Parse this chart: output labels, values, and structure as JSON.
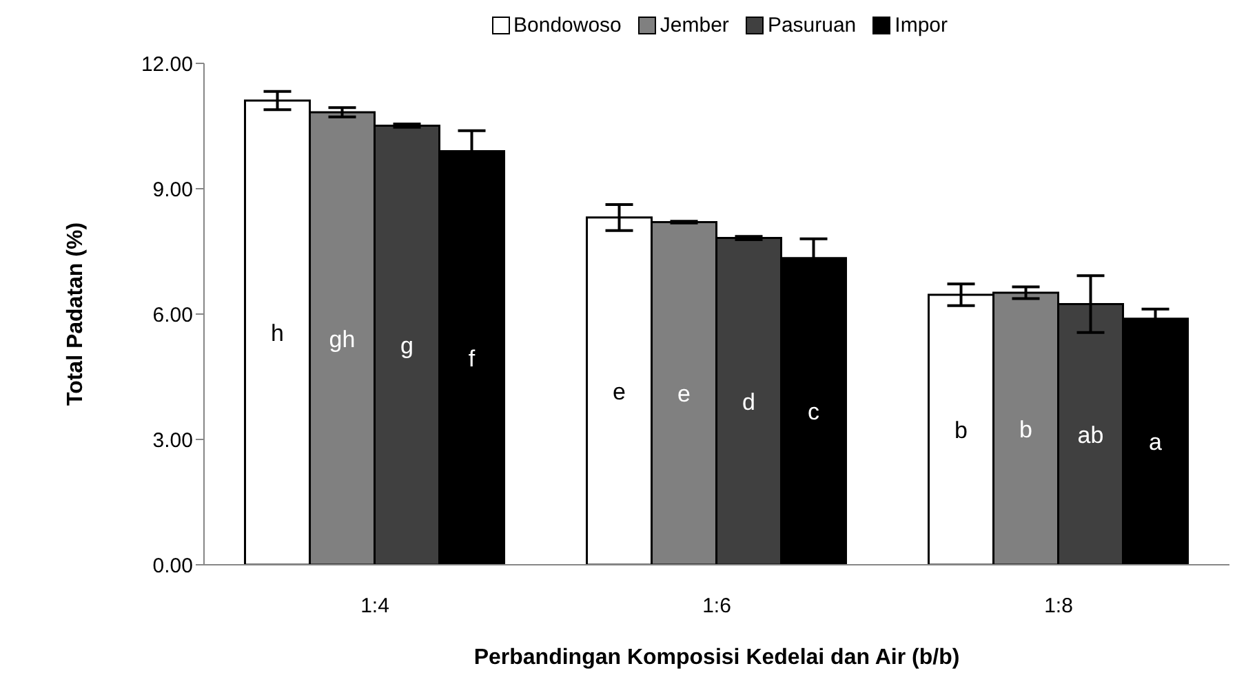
{
  "chart_data": {
    "type": "bar",
    "xlabel": "Perbandingan Komposisi Kedelai dan Air (b/b)",
    "ylabel": "Total Padatan (%)",
    "categories": [
      "1:4",
      "1:6",
      "1:8"
    ],
    "series": [
      {
        "name": "Bondowoso",
        "color": "#ffffff",
        "values": [
          11.11,
          8.31,
          6.46
        ],
        "errors": [
          0.22,
          0.31,
          0.26
        ],
        "value_labels": [
          "h",
          "e",
          "b"
        ]
      },
      {
        "name": "Jember",
        "color": "#808080",
        "values": [
          10.83,
          8.2,
          6.51
        ],
        "errors": [
          0.11,
          0.02,
          0.14
        ],
        "value_labels": [
          "gh",
          "e",
          "b"
        ]
      },
      {
        "name": "Pasuruan",
        "color": "#404040",
        "values": [
          10.51,
          7.82,
          6.24
        ],
        "errors": [
          0.04,
          0.04,
          0.68
        ],
        "value_labels": [
          "g",
          "d",
          "ab"
        ]
      },
      {
        "name": "Impor",
        "color": "#000000",
        "values": [
          9.9,
          7.34,
          5.89
        ],
        "errors": [
          0.49,
          0.46,
          0.23
        ],
        "value_labels": [
          "f",
          "c",
          "a"
        ]
      }
    ],
    "ylim": [
      0,
      12
    ],
    "yticks": [
      {
        "value": 0,
        "label": "0.00"
      },
      {
        "value": 3,
        "label": "3.00"
      },
      {
        "value": 6,
        "label": "6.00"
      },
      {
        "value": 9,
        "label": "9.00"
      },
      {
        "value": 12,
        "label": "12.00"
      }
    ],
    "grid": false,
    "legend": "top"
  }
}
